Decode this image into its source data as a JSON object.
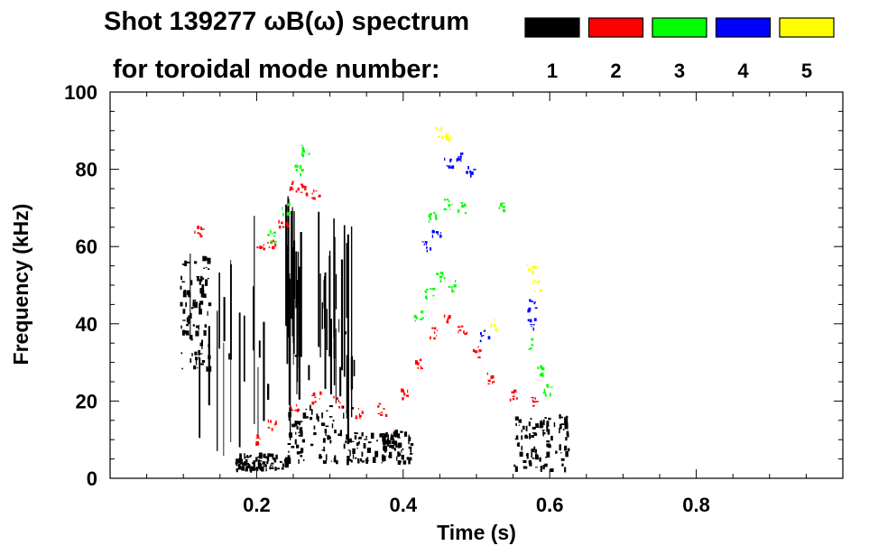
{
  "chart_data": {
    "type": "heatmap",
    "title_line1": "Shot 139277 ωB(ω) spectrum",
    "title_line2": "for toroidal mode number:",
    "xlabel": "Time (s)",
    "ylabel": "Frequency (kHz)",
    "xlim": [
      0.0,
      1.0
    ],
    "ylim": [
      0,
      100
    ],
    "x_ticks": [
      0.2,
      0.4,
      0.6,
      0.8
    ],
    "x_tick_labels": [
      "0.2",
      "0.4",
      "0.6",
      "0.8"
    ],
    "y_ticks": [
      0,
      20,
      40,
      60,
      80,
      100
    ],
    "y_tick_labels": [
      "0",
      "20",
      "40",
      "60",
      "80",
      "100"
    ],
    "legend": {
      "placement": "top-right",
      "entries": [
        {
          "label": "1",
          "color": "#000000"
        },
        {
          "label": "2",
          "color": "#ff0000"
        },
        {
          "label": "3",
          "color": "#00ff00"
        },
        {
          "label": "4",
          "color": "#0000ff"
        },
        {
          "label": "5",
          "color": "#ffff00"
        }
      ]
    },
    "series": [
      {
        "name": "n=1",
        "color": "#000000",
        "blobs": [
          {
            "t": [
              0.095,
              0.135
            ],
            "f": [
              28,
              57
            ]
          },
          {
            "t": [
              0.17,
              0.24
            ],
            "f": [
              2,
              6
            ]
          },
          {
            "t": [
              0.24,
              0.33
            ],
            "f": [
              4,
              19
            ]
          },
          {
            "t": [
              0.33,
              0.41
            ],
            "f": [
              4,
              12
            ]
          },
          {
            "t": [
              0.55,
              0.625
            ],
            "f": [
              2,
              16
            ]
          }
        ],
        "streaks": [
          {
            "t": [
              0.1,
              0.34
            ],
            "f": [
              5,
              68
            ]
          },
          {
            "t": [
              0.24,
              0.26
            ],
            "f": [
              18,
              75
            ]
          },
          {
            "t": [
              0.27,
              0.34
            ],
            "f": [
              20,
              70
            ]
          }
        ]
      },
      {
        "name": "n=2",
        "color": "#ff0000",
        "points": [
          {
            "t": 0.205,
            "f": 60
          },
          {
            "t": 0.22,
            "f": 61
          },
          {
            "t": 0.235,
            "f": 66
          },
          {
            "t": 0.25,
            "f": 76
          },
          {
            "t": 0.265,
            "f": 75
          },
          {
            "t": 0.28,
            "f": 74
          },
          {
            "t": 0.2,
            "f": 10
          },
          {
            "t": 0.22,
            "f": 14
          },
          {
            "t": 0.25,
            "f": 19
          },
          {
            "t": 0.28,
            "f": 21
          },
          {
            "t": 0.31,
            "f": 20
          },
          {
            "t": 0.34,
            "f": 17
          },
          {
            "t": 0.37,
            "f": 18
          },
          {
            "t": 0.4,
            "f": 22
          },
          {
            "t": 0.42,
            "f": 30
          },
          {
            "t": 0.44,
            "f": 38
          },
          {
            "t": 0.46,
            "f": 41
          },
          {
            "t": 0.48,
            "f": 39
          },
          {
            "t": 0.5,
            "f": 33
          },
          {
            "t": 0.52,
            "f": 26
          },
          {
            "t": 0.55,
            "f": 22
          },
          {
            "t": 0.575,
            "f": 20
          },
          {
            "t": 0.12,
            "f": 64
          }
        ]
      },
      {
        "name": "n=3",
        "color": "#00ff00",
        "points": [
          {
            "t": 0.22,
            "f": 63
          },
          {
            "t": 0.24,
            "f": 70
          },
          {
            "t": 0.255,
            "f": 80
          },
          {
            "t": 0.265,
            "f": 85
          },
          {
            "t": 0.42,
            "f": 42
          },
          {
            "t": 0.435,
            "f": 48
          },
          {
            "t": 0.45,
            "f": 52
          },
          {
            "t": 0.465,
            "f": 50
          },
          {
            "t": 0.44,
            "f": 68
          },
          {
            "t": 0.46,
            "f": 71
          },
          {
            "t": 0.48,
            "f": 70
          },
          {
            "t": 0.53,
            "f": 70
          },
          {
            "t": 0.57,
            "f": 35
          },
          {
            "t": 0.585,
            "f": 28
          },
          {
            "t": 0.595,
            "f": 23
          }
        ]
      },
      {
        "name": "n=4",
        "color": "#0000ff",
        "points": [
          {
            "t": 0.43,
            "f": 60
          },
          {
            "t": 0.445,
            "f": 63
          },
          {
            "t": 0.46,
            "f": 82
          },
          {
            "t": 0.475,
            "f": 83
          },
          {
            "t": 0.49,
            "f": 80
          },
          {
            "t": 0.51,
            "f": 37
          },
          {
            "t": 0.575,
            "f": 45
          },
          {
            "t": 0.575,
            "f": 40
          }
        ]
      },
      {
        "name": "n=5",
        "color": "#ffff00",
        "points": [
          {
            "t": 0.45,
            "f": 90
          },
          {
            "t": 0.46,
            "f": 89
          },
          {
            "t": 0.52,
            "f": 40
          },
          {
            "t": 0.575,
            "f": 55
          },
          {
            "t": 0.58,
            "f": 50
          }
        ]
      }
    ]
  }
}
